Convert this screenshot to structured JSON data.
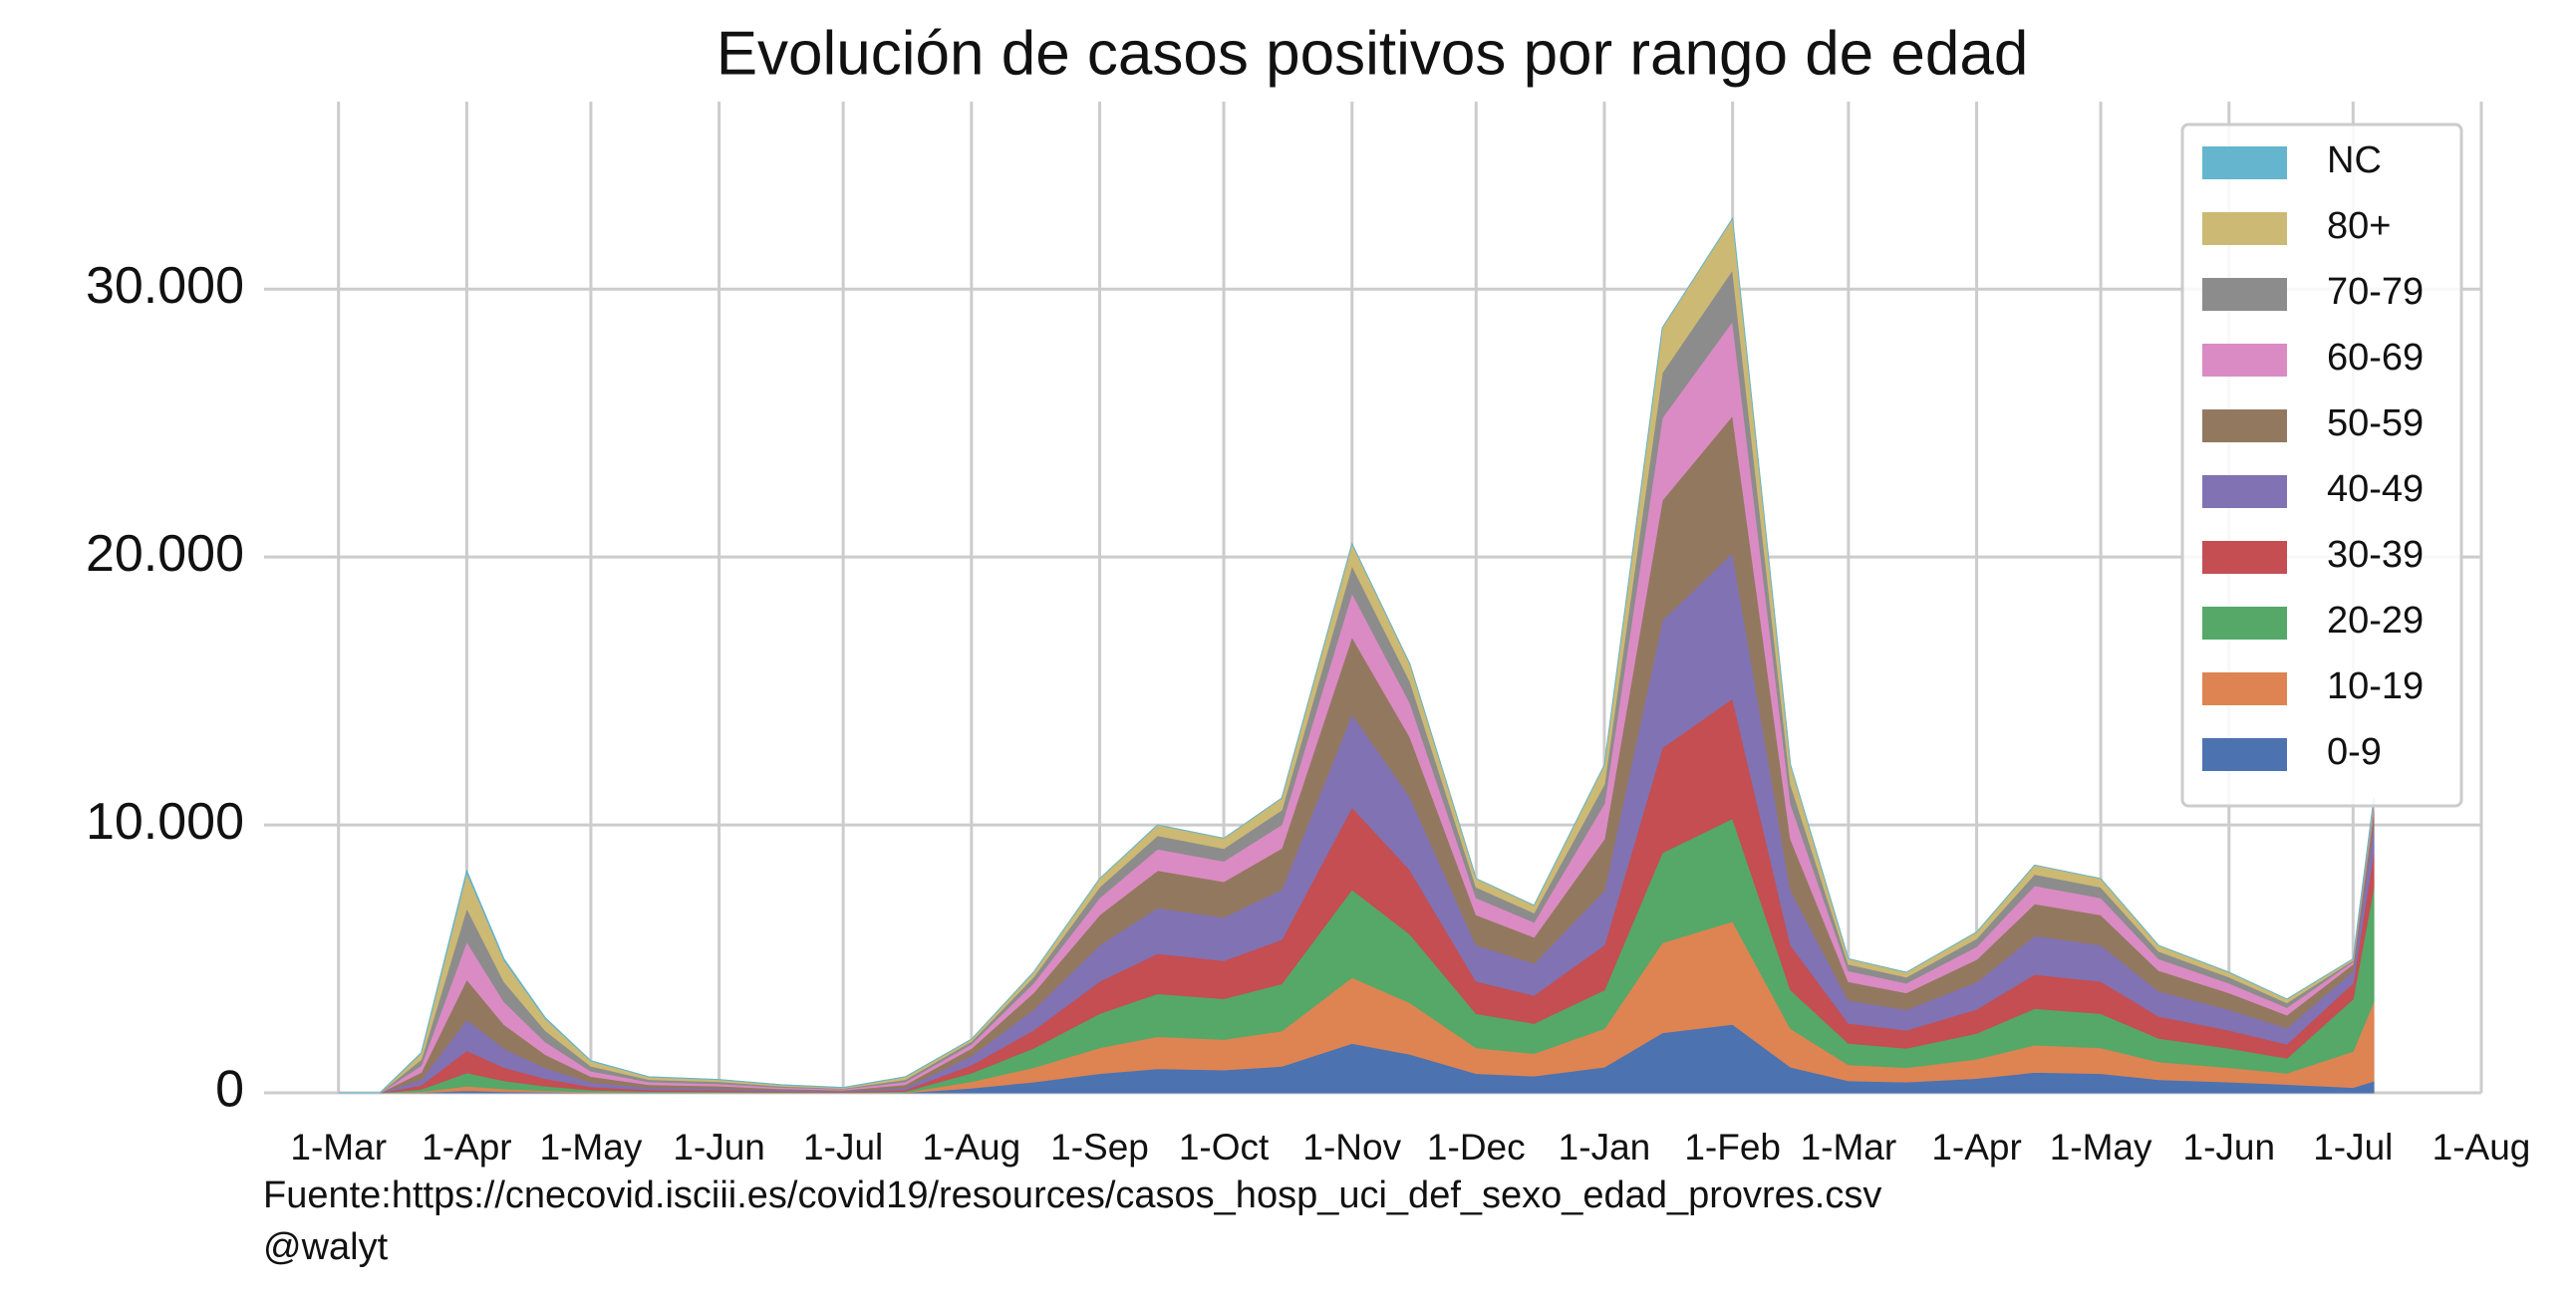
{
  "chart_data": {
    "type": "area",
    "stacked": true,
    "title": "Evolución de casos positivos por rango de edad",
    "footer": [
      "Fuente:https://cnecovid.isciii.es/covid19/resources/casos_hosp_uci_def_sexo_edad_provres.csv",
      "@walyt"
    ],
    "x": [
      0,
      10,
      20,
      31,
      40,
      50,
      61,
      75,
      92,
      107,
      122,
      137,
      153,
      168,
      184,
      198,
      214,
      228,
      245,
      259,
      275,
      289,
      306,
      320,
      337,
      351,
      365,
      379,
      396,
      410,
      426,
      440,
      457,
      471,
      487,
      492
    ],
    "xlim": [
      -18,
      518
    ],
    "xticks": [
      {
        "value": 0,
        "label": "1-Mar"
      },
      {
        "value": 31,
        "label": "1-Apr"
      },
      {
        "value": 61,
        "label": "1-May"
      },
      {
        "value": 92,
        "label": "1-Jun"
      },
      {
        "value": 122,
        "label": "1-Jul"
      },
      {
        "value": 153,
        "label": "1-Aug"
      },
      {
        "value": 184,
        "label": "1-Sep"
      },
      {
        "value": 214,
        "label": "1-Oct"
      },
      {
        "value": 245,
        "label": "1-Nov"
      },
      {
        "value": 275,
        "label": "1-Dec"
      },
      {
        "value": 306,
        "label": "1-Jan"
      },
      {
        "value": 337,
        "label": "1-Feb"
      },
      {
        "value": 365,
        "label": "1-Mar"
      },
      {
        "value": 396,
        "label": "1-Apr"
      },
      {
        "value": 426,
        "label": "1-May"
      },
      {
        "value": 457,
        "label": "1-Jun"
      },
      {
        "value": 487,
        "label": "1-Jul"
      },
      {
        "value": 518,
        "label": "1-Aug"
      }
    ],
    "ylim": [
      0,
      37000
    ],
    "yticks": [
      0,
      {
        "value": 10000,
        "label": "10.000"
      },
      {
        "value": 20000,
        "label": "20.000"
      },
      {
        "value": 30000,
        "label": "30.000"
      }
    ],
    "grid": true,
    "legend": "upper right",
    "series": [
      {
        "name": "0-9",
        "color": "#4c72b0",
        "values": [
          0,
          0,
          15,
          83,
          50,
          28,
          12,
          6,
          5,
          3,
          2,
          6,
          180,
          405,
          720,
          900,
          855,
          990,
          1845,
          1440,
          720,
          630,
          960,
          2240,
          2560,
          960,
          450,
          405,
          540,
          765,
          720,
          495,
          405,
          315,
          200,
          440
        ]
      },
      {
        "name": "10-19",
        "color": "#dd8452",
        "values": [
          0,
          0,
          30,
          166,
          100,
          56,
          24,
          12,
          10,
          6,
          4,
          12,
          240,
          540,
          960,
          1200,
          1140,
          1320,
          2460,
          1920,
          960,
          840,
          1440,
          3360,
          3840,
          1440,
          600,
          540,
          720,
          1020,
          960,
          660,
          540,
          420,
          1350,
          2970
        ]
      },
      {
        "name": "20-29",
        "color": "#55a868",
        "values": [
          0,
          0,
          90,
          498,
          300,
          168,
          72,
          36,
          30,
          18,
          12,
          36,
          320,
          720,
          1280,
          1600,
          1520,
          1760,
          3280,
          2560,
          1280,
          1120,
          1440,
          3360,
          3840,
          1440,
          800,
          720,
          960,
          1360,
          1280,
          880,
          720,
          560,
          1950,
          4290
        ]
      },
      {
        "name": "30-39",
        "color": "#c44e52",
        "values": [
          0,
          0,
          150,
          830,
          500,
          280,
          120,
          60,
          50,
          30,
          20,
          60,
          300,
          675,
          1200,
          1500,
          1425,
          1650,
          3075,
          2400,
          1200,
          1050,
          1680,
          3920,
          4480,
          1680,
          750,
          675,
          900,
          1275,
          1200,
          825,
          675,
          525,
          600,
          1320
        ]
      },
      {
        "name": "40-49",
        "color": "#8172b3",
        "values": [
          0,
          0,
          210,
          1162,
          700,
          392,
          168,
          84,
          70,
          42,
          28,
          84,
          340,
          765,
          1360,
          1700,
          1615,
          1870,
          3485,
          2720,
          1360,
          1190,
          2040,
          4760,
          5440,
          2040,
          850,
          765,
          1020,
          1445,
          1360,
          935,
          765,
          595,
          450,
          990
        ]
      },
      {
        "name": "50-59",
        "color": "#937860",
        "values": [
          0,
          0,
          270,
          1494,
          900,
          504,
          216,
          108,
          90,
          54,
          36,
          108,
          280,
          630,
          1120,
          1400,
          1330,
          1540,
          2870,
          2240,
          1120,
          980,
          1920,
          4480,
          5120,
          1920,
          700,
          630,
          840,
          1190,
          1120,
          770,
          630,
          490,
          250,
          550
        ]
      },
      {
        "name": "60-69",
        "color": "#da8bc3",
        "values": [
          0,
          0,
          255,
          1411,
          850,
          476,
          204,
          102,
          85,
          51,
          34,
          102,
          160,
          360,
          640,
          800,
          760,
          880,
          1640,
          1280,
          640,
          560,
          1320,
          3080,
          3520,
          1320,
          400,
          360,
          480,
          680,
          640,
          440,
          360,
          280,
          100,
          220
        ]
      },
      {
        "name": "70-79",
        "color": "#8c8c8c",
        "values": [
          0,
          0,
          225,
          1245,
          750,
          420,
          180,
          90,
          75,
          45,
          30,
          90,
          100,
          225,
          400,
          500,
          475,
          550,
          1025,
          800,
          400,
          350,
          720,
          1680,
          1920,
          720,
          250,
          225,
          300,
          425,
          400,
          275,
          225,
          175,
          50,
          110
        ]
      },
      {
        "name": "80+",
        "color": "#ccb974",
        "values": [
          0,
          0,
          240,
          1328,
          800,
          448,
          192,
          96,
          80,
          48,
          32,
          96,
          80,
          180,
          320,
          400,
          380,
          440,
          820,
          640,
          320,
          280,
          720,
          1680,
          1920,
          720,
          200,
          180,
          240,
          340,
          320,
          220,
          180,
          140,
          50,
          110
        ]
      },
      {
        "name": "NC",
        "color": "#64b5cd",
        "values": [
          0,
          0,
          15,
          83,
          50,
          28,
          12,
          6,
          5,
          3,
          2,
          6,
          0,
          0,
          0,
          0,
          0,
          0,
          0,
          0,
          0,
          0,
          0,
          0,
          0,
          0,
          0,
          0,
          0,
          0,
          0,
          0,
          0,
          0,
          0,
          0
        ]
      }
    ]
  }
}
